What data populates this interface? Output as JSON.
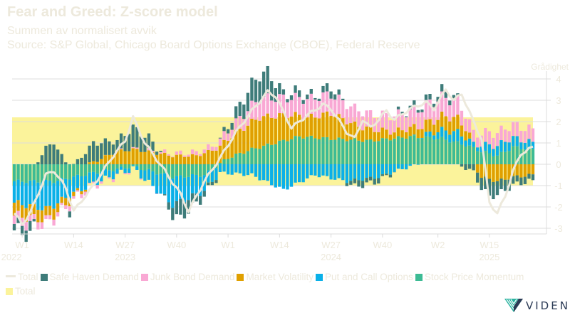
{
  "header": {
    "title": "Fear and Greed: Z-score model",
    "subtitle": "Summen av normalisert avvik",
    "source": "Source: S&P Global, Chicago Board Options Exchange (CBOE), Federal Reserve"
  },
  "logo": {
    "text": "VIDEN"
  },
  "chart_data": {
    "type": "bar",
    "stacked": true,
    "title": "Fear and Greed: Z-score model",
    "ylabel": "Grådighet",
    "ylim": [
      -3.3,
      4.3
    ],
    "yticks": [
      4,
      3,
      2,
      1,
      0,
      -1,
      -2,
      -3
    ],
    "ytick_labels": [
      "4",
      "3",
      "2",
      "1",
      "0",
      "-1",
      "-2",
      "-3"
    ],
    "grid": true,
    "legend_position": "bottom-left",
    "band": {
      "name": "Total",
      "from": -1.0,
      "to": 2.2,
      "color": "#fbf39b"
    },
    "xticks": [
      {
        "index": 2,
        "label": "W1",
        "year": "2022"
      },
      {
        "index": 15,
        "label": "W14",
        "year": ""
      },
      {
        "index": 28,
        "label": "W27",
        "year": "2023"
      },
      {
        "index": 41,
        "label": "W40",
        "year": ""
      },
      {
        "index": 54,
        "label": "W1",
        "year": ""
      },
      {
        "index": 67,
        "label": "W14",
        "year": ""
      },
      {
        "index": 80,
        "label": "W27",
        "year": "2024"
      },
      {
        "index": 93,
        "label": "W40",
        "year": ""
      },
      {
        "index": 107,
        "label": "W2",
        "year": ""
      },
      {
        "index": 120,
        "label": "W15",
        "year": "2025"
      }
    ],
    "legend": [
      {
        "name": "Total",
        "kind": "line",
        "color": "#ede9dc"
      },
      {
        "name": "Safe Haven Demand",
        "kind": "box",
        "color": "#3e7c7a"
      },
      {
        "name": "Junk Bond Demand",
        "kind": "box",
        "color": "#f9a8d4"
      },
      {
        "name": "Market Volatility",
        "kind": "box",
        "color": "#e0a000"
      },
      {
        "name": "Put and Call Options",
        "kind": "box",
        "color": "#0ab0e8"
      },
      {
        "name": "Stock Price Momentum",
        "kind": "box",
        "color": "#3dbb94"
      },
      {
        "name": "Total",
        "kind": "box",
        "color": "#fbf39b"
      }
    ],
    "anchors": {
      "Stock Price Momentum": [
        [
          0,
          -0.8
        ],
        [
          10,
          -0.8
        ],
        [
          20,
          -0.4
        ],
        [
          30,
          -0.1
        ],
        [
          40,
          -0.6
        ],
        [
          48,
          -0.5
        ],
        [
          54,
          0.3
        ],
        [
          60,
          0.7
        ],
        [
          66,
          1.0
        ],
        [
          72,
          1.3
        ],
        [
          80,
          1.2
        ],
        [
          90,
          1.1
        ],
        [
          100,
          1.3
        ],
        [
          108,
          1.2
        ],
        [
          114,
          0.9
        ],
        [
          118,
          0.6
        ],
        [
          122,
          0.4
        ],
        [
          126,
          0.8
        ],
        [
          131,
          0.7
        ]
      ],
      "Put and Call Options": [
        [
          0,
          -1.0
        ],
        [
          8,
          -1.3
        ],
        [
          14,
          -0.8
        ],
        [
          20,
          -0.5
        ],
        [
          30,
          -0.1
        ],
        [
          40,
          -1.3
        ],
        [
          46,
          -0.9
        ],
        [
          52,
          -0.4
        ],
        [
          60,
          -0.5
        ],
        [
          68,
          -1.2
        ],
        [
          76,
          -0.5
        ],
        [
          84,
          -0.8
        ],
        [
          92,
          -0.6
        ],
        [
          100,
          -0.1
        ],
        [
          108,
          0.4
        ],
        [
          112,
          0.5
        ],
        [
          116,
          0.2
        ],
        [
          120,
          0.4
        ],
        [
          124,
          0.5
        ],
        [
          131,
          0.3
        ]
      ],
      "Market Volatility": [
        [
          0,
          -0.6
        ],
        [
          8,
          -0.5
        ],
        [
          14,
          -0.3
        ],
        [
          20,
          0.1
        ],
        [
          26,
          0.6
        ],
        [
          30,
          0.7
        ],
        [
          40,
          0.4
        ],
        [
          46,
          0.4
        ],
        [
          54,
          0.9
        ],
        [
          62,
          1.4
        ],
        [
          68,
          1.2
        ],
        [
          74,
          0.9
        ],
        [
          80,
          1.2
        ],
        [
          86,
          0.7
        ],
        [
          96,
          0.3
        ],
        [
          104,
          0.5
        ],
        [
          110,
          0.7
        ],
        [
          114,
          0.5
        ],
        [
          118,
          -0.6
        ],
        [
          122,
          -0.8
        ],
        [
          126,
          -0.6
        ],
        [
          131,
          -0.5
        ]
      ],
      "Junk Bond Demand": [
        [
          0,
          -0.4
        ],
        [
          10,
          -0.2
        ],
        [
          20,
          -0.1
        ],
        [
          30,
          0.0
        ],
        [
          40,
          0.1
        ],
        [
          50,
          0.2
        ],
        [
          56,
          0.5
        ],
        [
          62,
          0.9
        ],
        [
          70,
          0.8
        ],
        [
          78,
          0.9
        ],
        [
          84,
          0.8
        ],
        [
          90,
          0.7
        ],
        [
          100,
          0.8
        ],
        [
          106,
          0.9
        ],
        [
          112,
          0.8
        ],
        [
          116,
          0.5
        ],
        [
          120,
          0.6
        ],
        [
          126,
          0.6
        ],
        [
          131,
          0.6
        ]
      ],
      "Safe Haven Demand": [
        [
          0,
          -0.3
        ],
        [
          4,
          -0.5
        ],
        [
          8,
          0.8
        ],
        [
          10,
          1.0
        ],
        [
          14,
          -0.2
        ],
        [
          20,
          0.9
        ],
        [
          26,
          0.5
        ],
        [
          30,
          1.0
        ],
        [
          34,
          0.6
        ],
        [
          40,
          -0.5
        ],
        [
          42,
          -0.8
        ],
        [
          46,
          -0.4
        ],
        [
          52,
          0.0
        ],
        [
          56,
          0.5
        ],
        [
          60,
          1.0
        ],
        [
          64,
          1.2
        ],
        [
          68,
          0.2
        ],
        [
          72,
          0.3
        ],
        [
          76,
          0.1
        ],
        [
          80,
          0.4
        ],
        [
          86,
          -0.3
        ],
        [
          92,
          -0.2
        ],
        [
          98,
          0.1
        ],
        [
          104,
          0.2
        ],
        [
          110,
          0.3
        ],
        [
          114,
          -0.2
        ],
        [
          117,
          -0.4
        ],
        [
          120,
          -0.8
        ],
        [
          124,
          -0.5
        ],
        [
          128,
          -0.3
        ],
        [
          131,
          -0.3
        ]
      ],
      "Total": [
        [
          0,
          -2.3
        ],
        [
          2,
          -2.8
        ],
        [
          4,
          -2.3
        ],
        [
          8,
          -0.5
        ],
        [
          10,
          -0.3
        ],
        [
          13,
          -1.1
        ],
        [
          15,
          -2.2
        ],
        [
          20,
          -1.0
        ],
        [
          25,
          0.4
        ],
        [
          28,
          1.1
        ],
        [
          30,
          2.2
        ],
        [
          33,
          1.0
        ],
        [
          38,
          -0.3
        ],
        [
          42,
          -1.4
        ],
        [
          44,
          -2.2
        ],
        [
          48,
          -0.8
        ],
        [
          52,
          0.3
        ],
        [
          56,
          1.5
        ],
        [
          60,
          2.5
        ],
        [
          64,
          3.4
        ],
        [
          66,
          3.2
        ],
        [
          70,
          1.7
        ],
        [
          74,
          2.3
        ],
        [
          78,
          2.8
        ],
        [
          80,
          2.6
        ],
        [
          84,
          1.5
        ],
        [
          86,
          1.2
        ],
        [
          88,
          2.1
        ],
        [
          90,
          1.7
        ],
        [
          94,
          2.5
        ],
        [
          96,
          2.1
        ],
        [
          100,
          2.6
        ],
        [
          104,
          2.9
        ],
        [
          106,
          2.6
        ],
        [
          109,
          3.5
        ],
        [
          111,
          3.0
        ],
        [
          113,
          3.3
        ],
        [
          116,
          2.0
        ],
        [
          118,
          1.2
        ],
        [
          120,
          -1.8
        ],
        [
          122,
          -2.3
        ],
        [
          124,
          -1.5
        ],
        [
          126,
          -0.3
        ],
        [
          128,
          0.5
        ],
        [
          131,
          0.8
        ]
      ]
    },
    "count": 132
  }
}
